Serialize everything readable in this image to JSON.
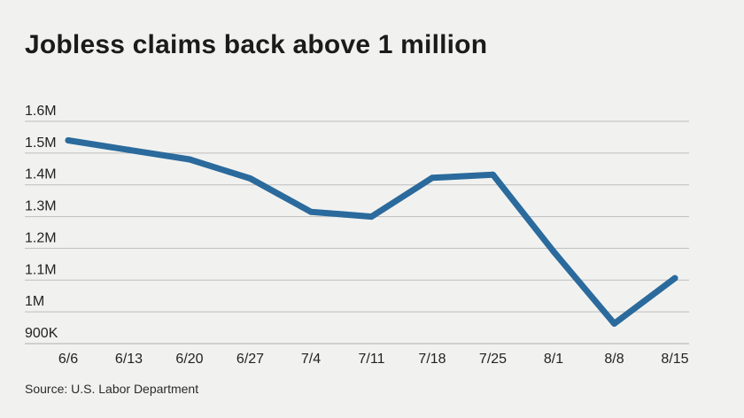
{
  "chart_data": {
    "type": "line",
    "title": "Jobless claims back above 1 million",
    "source": "Source: U.S. Labor Department",
    "categories": [
      "6/6",
      "6/13",
      "6/20",
      "6/27",
      "7/4",
      "7/11",
      "7/18",
      "7/25",
      "8/1",
      "8/8",
      "8/15"
    ],
    "series": [
      {
        "values": [
          1540000,
          1510000,
          1480000,
          1420000,
          1315000,
          1300000,
          1422000,
          1432000,
          1190000,
          963000,
          1106000
        ]
      }
    ],
    "y_ticks": [
      {
        "value": 1600000,
        "label": "1.6M"
      },
      {
        "value": 1500000,
        "label": "1.5M"
      },
      {
        "value": 1400000,
        "label": "1.4M"
      },
      {
        "value": 1300000,
        "label": "1.3M"
      },
      {
        "value": 1200000,
        "label": "1.2M"
      },
      {
        "value": 1100000,
        "label": "1.1M"
      },
      {
        "value": 1000000,
        "label": "1M"
      },
      {
        "value": 900000,
        "label": "900K"
      }
    ],
    "ylim": [
      900000,
      1600000
    ],
    "grid": true,
    "line_color": "#2b6a9c",
    "grid_color": "#bdbdbd"
  }
}
